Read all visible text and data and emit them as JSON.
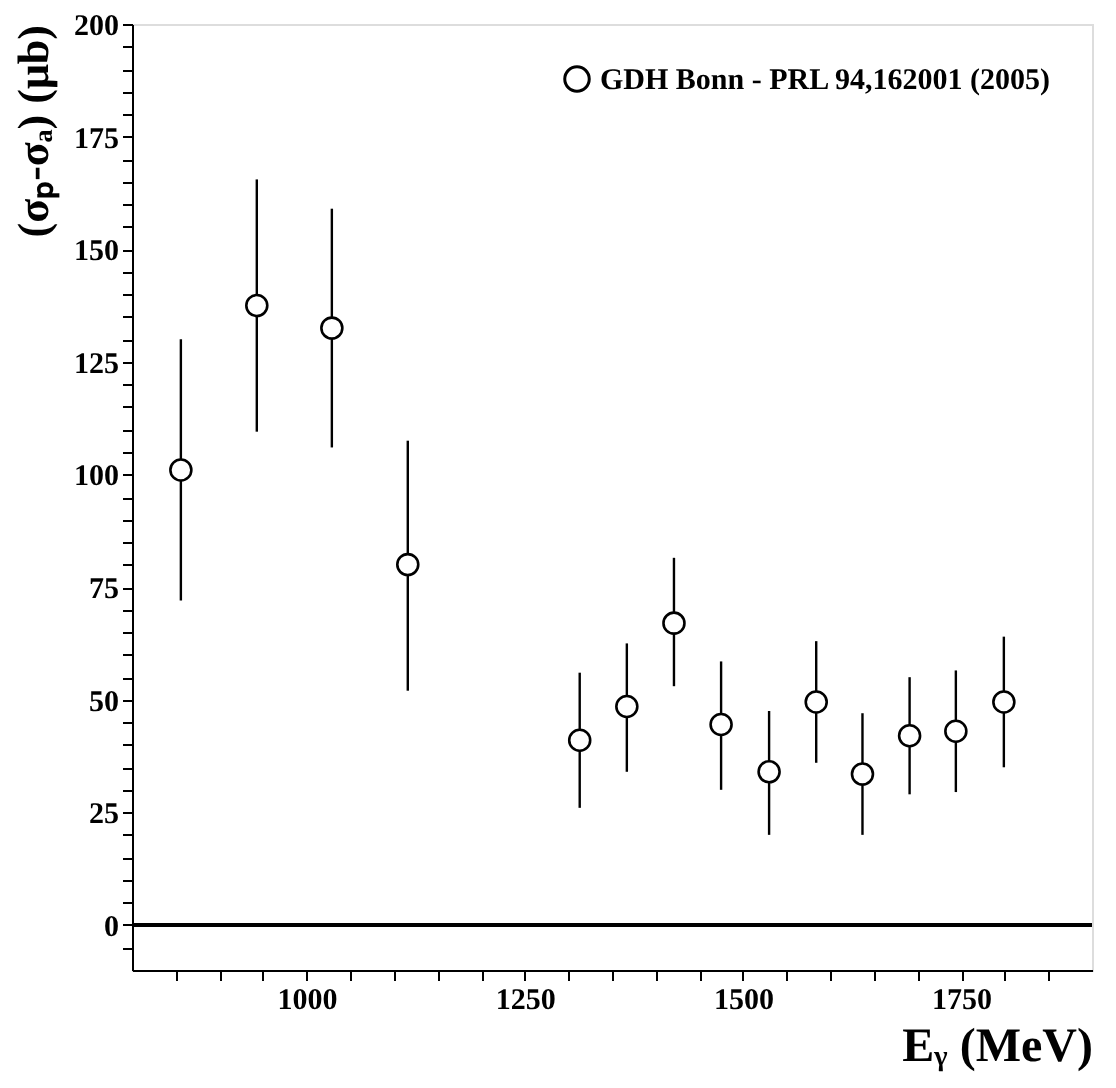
{
  "chart_data": {
    "type": "scatter",
    "xlabel": "Eᵧ (MeV)",
    "ylabel": "(σₚ-σₐ) (μb)",
    "x": [
      856,
      943,
      1029,
      1116,
      1313,
      1367,
      1421,
      1475,
      1530,
      1584,
      1637,
      1691,
      1744,
      1799
    ],
    "series": [
      {
        "name": "GDH Bonn - PRL 94,162001 (2005)",
        "color": "#000000",
        "values": [
          101,
          137.5,
          132.5,
          80,
          41,
          48.5,
          67,
          44.5,
          34,
          49.5,
          33.5,
          42,
          43,
          49.5
        ],
        "errors": [
          [
            72,
            130
          ],
          [
            109.5,
            165.5
          ],
          [
            106,
            159
          ],
          [
            52,
            107.5
          ],
          [
            26,
            56
          ],
          [
            34,
            62.5
          ],
          [
            53,
            81.5
          ],
          [
            30,
            58.5
          ],
          [
            20,
            47.5
          ],
          [
            36,
            63
          ],
          [
            20,
            47
          ],
          [
            29,
            55
          ],
          [
            29.5,
            56.5
          ],
          [
            35,
            64
          ]
        ]
      }
    ],
    "marker": "circle",
    "legend": "top right",
    "grid": false,
    "xlim": [
      800,
      1900
    ],
    "xticks": [
      {
        "value": 850,
        "label": null
      },
      {
        "value": 900,
        "label": null
      },
      {
        "value": 950,
        "label": null
      },
      1000,
      {
        "value": 1050,
        "label": null
      },
      {
        "value": 1100,
        "label": null
      },
      {
        "value": 1150,
        "label": null
      },
      {
        "value": 1200,
        "label": null
      },
      1250,
      {
        "value": 1300,
        "label": null
      },
      {
        "value": 1350,
        "label": null
      },
      {
        "value": 1400,
        "label": null
      },
      {
        "value": 1450,
        "label": null
      },
      1500,
      {
        "value": 1550,
        "label": null
      },
      {
        "value": 1600,
        "label": null
      },
      {
        "value": 1650,
        "label": null
      },
      {
        "value": 1700,
        "label": null
      },
      1750,
      {
        "value": 1800,
        "label": null
      },
      {
        "value": 1850,
        "label": null
      }
    ],
    "ylim": [
      -10,
      200
    ],
    "yticks": [
      {
        "value": -5,
        "label": null
      },
      0,
      {
        "value": 5,
        "label": null
      },
      {
        "value": 10,
        "label": null
      },
      {
        "value": 15,
        "label": null
      },
      {
        "value": 20,
        "label": null
      },
      25,
      {
        "value": 30,
        "label": null
      },
      {
        "value": 35,
        "label": null
      },
      {
        "value": 40,
        "label": null
      },
      {
        "value": 45,
        "label": null
      },
      50,
      {
        "value": 55,
        "label": null
      },
      {
        "value": 60,
        "label": null
      },
      {
        "value": 65,
        "label": null
      },
      {
        "value": 70,
        "label": null
      },
      75,
      {
        "value": 80,
        "label": null
      },
      {
        "value": 85,
        "label": null
      },
      {
        "value": 90,
        "label": null
      },
      {
        "value": 95,
        "label": null
      },
      100,
      {
        "value": 105,
        "label": null
      },
      {
        "value": 110,
        "label": null
      },
      {
        "value": 115,
        "label": null
      },
      {
        "value": 120,
        "label": null
      },
      125,
      {
        "value": 130,
        "label": null
      },
      {
        "value": 135,
        "label": null
      },
      {
        "value": 140,
        "label": null
      },
      {
        "value": 145,
        "label": null
      },
      150,
      {
        "value": 155,
        "label": null
      },
      {
        "value": 160,
        "label": null
      },
      {
        "value": 165,
        "label": null
      },
      {
        "value": 170,
        "label": null
      },
      175,
      {
        "value": 180,
        "label": null
      },
      {
        "value": 185,
        "label": null
      },
      {
        "value": 190,
        "label": null
      },
      {
        "value": 195,
        "label": null
      },
      200
    ],
    "ref_lines": [
      {
        "axis": "y",
        "value": 0,
        "label": null,
        "color": "#000000",
        "line_style": "solid"
      }
    ]
  }
}
